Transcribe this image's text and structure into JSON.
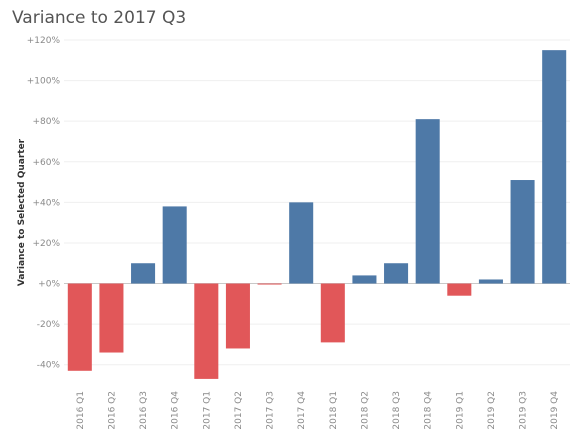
{
  "title": "Variance to 2017 Q3",
  "chart_data": {
    "type": "bar",
    "title": "Variance to 2017 Q3",
    "xlabel": "",
    "ylabel": "Variance to Selected Quarter",
    "ylim": [
      -50,
      120
    ],
    "yticks": [
      -40,
      -20,
      0,
      20,
      40,
      60,
      80,
      100,
      120
    ],
    "ytick_labels": [
      "-40%",
      "-20%",
      "+0%",
      "+20%",
      "+40%",
      "+60%",
      "+80%",
      "+100%",
      "+120%"
    ],
    "grid": true,
    "categories": [
      "2016 Q1",
      "2016 Q2",
      "2016 Q3",
      "2016 Q4",
      "2017 Q1",
      "2017 Q2",
      "2017 Q3",
      "2017 Q4",
      "2018 Q1",
      "2018 Q2",
      "2018 Q3",
      "2018 Q4",
      "2019 Q1",
      "2019 Q2",
      "2019 Q3",
      "2019 Q4"
    ],
    "values": [
      -43,
      -34,
      10,
      38,
      -47,
      -32,
      -0.5,
      40,
      -29,
      4,
      10,
      81,
      -6,
      2,
      51,
      115
    ],
    "colors": {
      "positive": "#4e79a7",
      "negative": "#e15759"
    }
  }
}
